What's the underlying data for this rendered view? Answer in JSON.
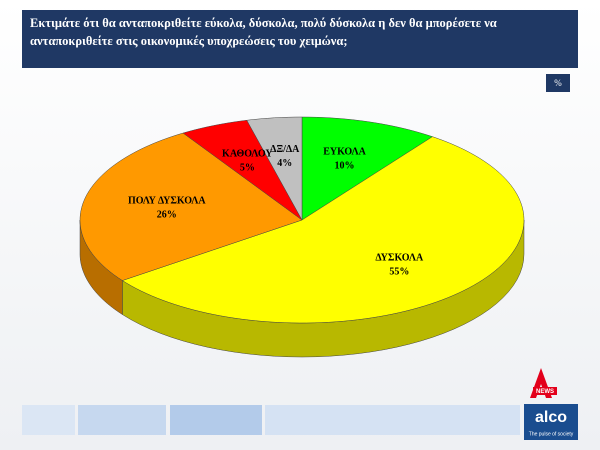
{
  "chart_data": {
    "type": "pie",
    "title": "Εκτιμάτε ότι θα ανταποκριθείτε εύκολα, δύσκολα, πολύ δύσκολα  η  δεν θα μπορέσετε να ανταποκριθείτε στις οικονομικές υποχρεώσεις  του  χειμώνα;",
    "unit_label": "%",
    "categories": [
      "ΕΥΚΟΛΑ",
      "ΔΥΣΚΟΛΑ",
      "ΠΟΛΥ ΔΥΣΚΟΛΑ",
      "ΚΑΘΟΛΟΥ",
      "ΔΞ/ΔΑ"
    ],
    "values": [
      10,
      55,
      26,
      5,
      4
    ],
    "value_labels": [
      "10%",
      "55%",
      "26%",
      "5%",
      "4%"
    ],
    "colors": [
      "#00ff00",
      "#ffff00",
      "#ff9900",
      "#ff0000",
      "#c0c0c0"
    ]
  },
  "branding": {
    "badge": "NEWS",
    "logo": "alco",
    "tagline": "The pulse of society"
  }
}
